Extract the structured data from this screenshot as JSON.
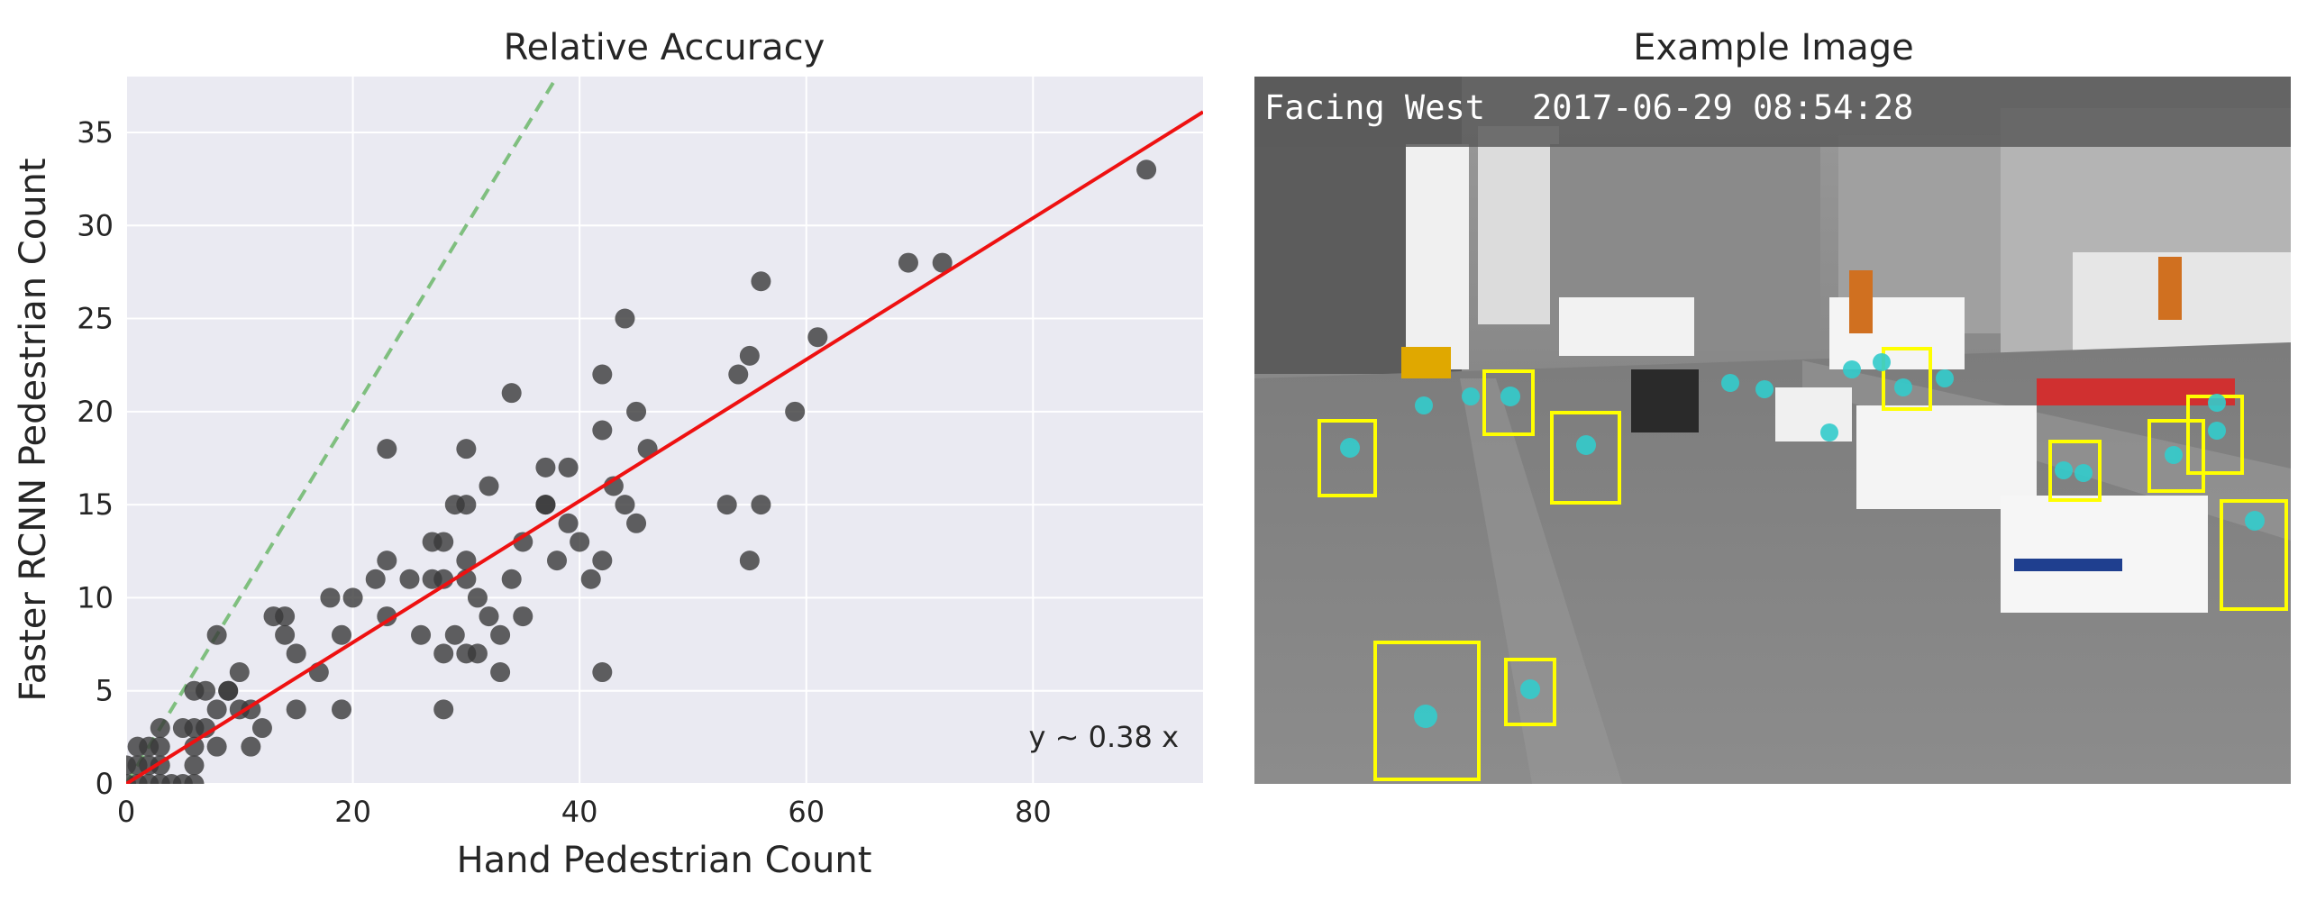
{
  "figure": {
    "left_title": "Relative Accuracy",
    "right_title": "Example Image",
    "colors": {
      "panel_bg": "#eaeaf2",
      "grid": "#ffffff",
      "points": "#3a3a3a",
      "fit_line": "#ee1111",
      "identity_line": "#7fbf7f",
      "box": "#ffff00",
      "dot": "#33cccc"
    }
  },
  "chart_data": {
    "type": "scatter",
    "title": "Relative Accuracy",
    "xlabel": "Hand Pedestrian Count",
    "ylabel": "Faster RCNN Pedestrian Count",
    "xlim": [
      0,
      95
    ],
    "ylim": [
      0,
      38
    ],
    "xticks": [
      0,
      20,
      40,
      60,
      80
    ],
    "yticks": [
      0,
      5,
      10,
      15,
      20,
      25,
      30,
      35
    ],
    "grid": true,
    "annotation": "y ~ 0.38 x",
    "fit_line": {
      "slope": 0.38,
      "intercept": 0,
      "style": "solid red"
    },
    "identity_line": {
      "slope": 1,
      "intercept": 0,
      "style": "dashed green"
    },
    "points": [
      [
        0,
        0
      ],
      [
        0,
        1
      ],
      [
        1,
        0
      ],
      [
        1,
        1
      ],
      [
        1,
        2
      ],
      [
        2,
        0
      ],
      [
        2,
        1
      ],
      [
        2,
        2
      ],
      [
        3,
        0
      ],
      [
        3,
        1
      ],
      [
        3,
        2
      ],
      [
        3,
        3
      ],
      [
        4,
        0
      ],
      [
        5,
        0
      ],
      [
        5,
        3
      ],
      [
        6,
        0
      ],
      [
        6,
        1
      ],
      [
        6,
        2
      ],
      [
        6,
        3
      ],
      [
        6,
        5
      ],
      [
        7,
        3
      ],
      [
        7,
        5
      ],
      [
        8,
        2
      ],
      [
        8,
        4
      ],
      [
        8,
        8
      ],
      [
        9,
        5
      ],
      [
        9,
        5
      ],
      [
        10,
        4
      ],
      [
        10,
        6
      ],
      [
        11,
        2
      ],
      [
        11,
        4
      ],
      [
        12,
        3
      ],
      [
        13,
        9
      ],
      [
        14,
        8
      ],
      [
        14,
        9
      ],
      [
        15,
        4
      ],
      [
        15,
        7
      ],
      [
        17,
        6
      ],
      [
        18,
        10
      ],
      [
        19,
        4
      ],
      [
        19,
        8
      ],
      [
        20,
        10
      ],
      [
        22,
        11
      ],
      [
        23,
        9
      ],
      [
        23,
        12
      ],
      [
        23,
        18
      ],
      [
        25,
        11
      ],
      [
        26,
        8
      ],
      [
        27,
        11
      ],
      [
        27,
        13
      ],
      [
        28,
        4
      ],
      [
        28,
        7
      ],
      [
        28,
        11
      ],
      [
        28,
        13
      ],
      [
        29,
        8
      ],
      [
        29,
        15
      ],
      [
        30,
        7
      ],
      [
        30,
        11
      ],
      [
        30,
        12
      ],
      [
        30,
        15
      ],
      [
        30,
        18
      ],
      [
        31,
        7
      ],
      [
        31,
        10
      ],
      [
        32,
        9
      ],
      [
        32,
        16
      ],
      [
        33,
        6
      ],
      [
        33,
        8
      ],
      [
        34,
        11
      ],
      [
        34,
        21
      ],
      [
        35,
        9
      ],
      [
        35,
        13
      ],
      [
        37,
        15
      ],
      [
        37,
        15
      ],
      [
        37,
        17
      ],
      [
        38,
        12
      ],
      [
        39,
        14
      ],
      [
        39,
        17
      ],
      [
        40,
        13
      ],
      [
        41,
        11
      ],
      [
        42,
        6
      ],
      [
        42,
        12
      ],
      [
        42,
        19
      ],
      [
        42,
        22
      ],
      [
        43,
        16
      ],
      [
        44,
        15
      ],
      [
        44,
        25
      ],
      [
        45,
        14
      ],
      [
        45,
        20
      ],
      [
        46,
        18
      ],
      [
        53,
        15
      ],
      [
        54,
        22
      ],
      [
        55,
        12
      ],
      [
        55,
        23
      ],
      [
        56,
        15
      ],
      [
        56,
        27
      ],
      [
        59,
        20
      ],
      [
        61,
        24
      ],
      [
        69,
        28
      ],
      [
        72,
        28
      ],
      [
        90,
        33
      ]
    ]
  },
  "image_panel": {
    "caption_direction": "Facing West",
    "caption_timestamp": "2017-06-29 08:54:28"
  }
}
